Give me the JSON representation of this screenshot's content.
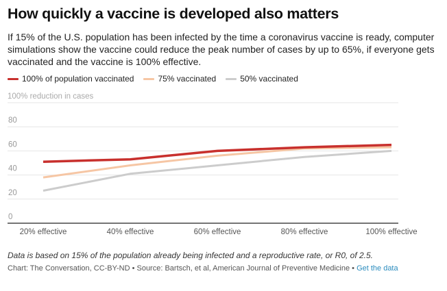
{
  "chart_data": {
    "type": "line",
    "title": "How quickly a vaccine is developed also matters",
    "subtitle": "If 15% of the U.S. population has been infected by the time a coronavirus vaccine is ready, computer simulations show the vaccine could reduce the peak number of cases by up to 65%, if everyone gets vaccinated and the vaccine is 100% effective.",
    "xlabel": "",
    "ylabel": "100% reduction in cases",
    "categories": [
      "20% effective",
      "40% effective",
      "60% effective",
      "80% effective",
      "100% effective"
    ],
    "ylim": [
      0,
      100
    ],
    "yticks": [
      0,
      20,
      40,
      60,
      80
    ],
    "ytick_labels": [
      "0",
      "20",
      "40",
      "60",
      "80"
    ],
    "grid": true,
    "legend_position": "top-left",
    "series": [
      {
        "name": "100% of population vaccinated",
        "color": "#c8302d",
        "values": [
          51,
          53,
          60,
          63,
          65
        ]
      },
      {
        "name": "75% vaccinated",
        "color": "#f6c6a4",
        "values": [
          38,
          48,
          56,
          62,
          63
        ]
      },
      {
        "name": "50% vaccinated",
        "color": "#cccccc",
        "values": [
          27,
          41,
          48,
          55,
          60
        ]
      }
    ]
  },
  "footer": {
    "note": "Data is based on 15% of the population already being infected and a reproductive rate, or R0, of 2.5.",
    "credit": "Chart: The Conversation, CC-BY-ND",
    "separator": " • ",
    "source": "Source: Bartsch, et al, American Journal of Preventive Medicine",
    "link_label": "Get the data",
    "link_color": "#2b8cbe"
  }
}
